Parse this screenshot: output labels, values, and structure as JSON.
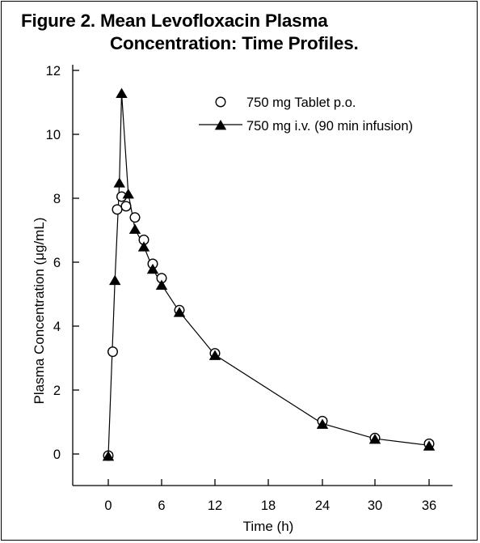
{
  "chart_data": {
    "type": "line",
    "title_line1": "Figure 2. Mean Levofloxacin Plasma",
    "title_line2": "Concentration: Time Profiles.",
    "xlabel": "Time (h)",
    "ylabel": "Plasma Concentration (μg/mL)",
    "ylim": [
      -1,
      12
    ],
    "y_ticks": [
      0,
      2,
      4,
      6,
      8,
      10,
      12
    ],
    "x_ticks": [
      {
        "label": "0",
        "value": 0
      },
      {
        "label": "6",
        "value": 6
      },
      {
        "label": "12",
        "value": 12
      },
      {
        "label": "18",
        "value": 18
      },
      {
        "label": "24",
        "value": 24
      },
      {
        "label": "30",
        "value": 30
      },
      {
        "label": "36",
        "value": 36
      }
    ],
    "x_axis_note": "x axis is piecewise: 0-12 h compressed differently than 12-36 h as drawn",
    "legend_position": "top-right",
    "series": [
      {
        "name": "750 mg Tablet p.o.",
        "marker": "open-circle",
        "line": false,
        "x": [
          0,
          0.5,
          1,
          1.5,
          2,
          3,
          4,
          5,
          6,
          8,
          12,
          24,
          30,
          36
        ],
        "y": [
          -0.05,
          3.2,
          7.65,
          8.05,
          7.75,
          7.4,
          6.7,
          5.95,
          5.5,
          4.5,
          3.15,
          1.03,
          0.5,
          0.32
        ]
      },
      {
        "name": "750 mg i.v. (90 min infusion)",
        "marker": "filled-triangle",
        "line": true,
        "x": [
          0,
          0.75,
          1.25,
          1.5,
          2.25,
          3,
          4,
          5,
          6,
          8,
          12,
          24,
          30,
          36
        ],
        "y": [
          -0.05,
          5.45,
          8.5,
          11.3,
          8.15,
          7.05,
          6.5,
          5.8,
          5.3,
          4.45,
          3.1,
          0.95,
          0.48,
          0.27
        ]
      }
    ]
  }
}
